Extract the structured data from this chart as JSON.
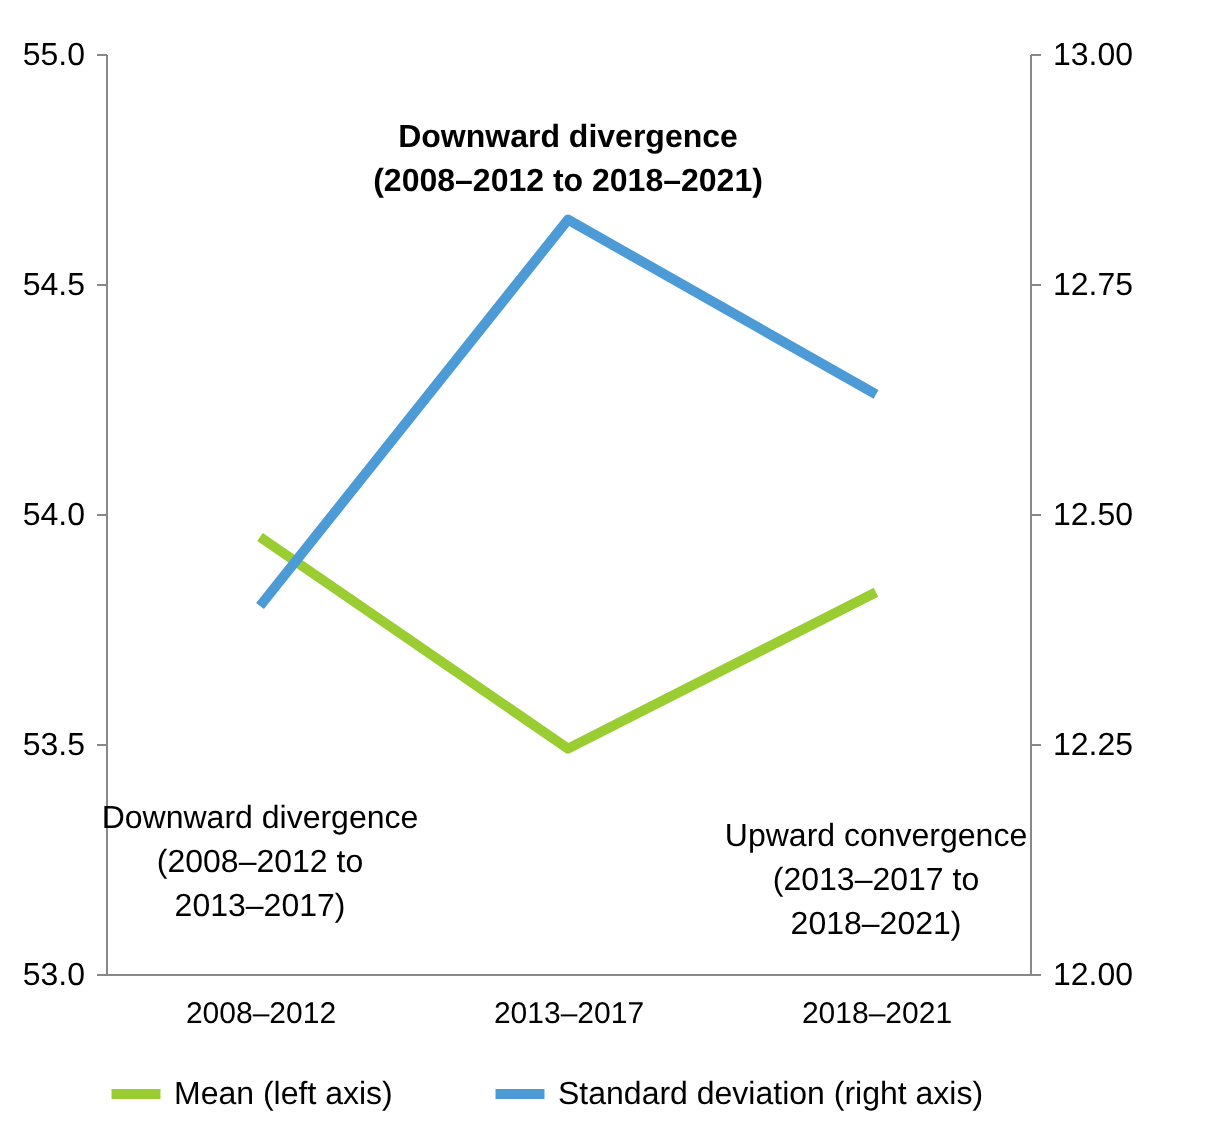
{
  "chart_data": {
    "type": "line",
    "categories": [
      "2008–2012",
      "2013–2017",
      "2018–2021"
    ],
    "series": [
      {
        "name": "Mean (left axis)",
        "color": "#9acd32",
        "values": [
          53.95,
          53.49,
          53.83
        ]
      },
      {
        "name": "Standard deviation (right axis)",
        "color": "#4c9ad6",
        "values": [
          12.4,
          12.82,
          12.63
        ],
        "axis": "y2"
      }
    ],
    "ylim": [
      53,
      55
    ],
    "yticks": [
      {
        "value": 53,
        "label": "53.0"
      },
      {
        "value": 53.5,
        "label": "53.5"
      },
      {
        "value": 54,
        "label": "54.0"
      },
      {
        "value": 54.5,
        "label": "54.5"
      },
      {
        "value": 55,
        "label": "55.0"
      }
    ],
    "y2lim": [
      12,
      13
    ],
    "y2ticks": [
      {
        "value": 12,
        "label": "12.00"
      },
      {
        "value": 12.25,
        "label": "12.25"
      },
      {
        "value": 12.5,
        "label": "12.50"
      },
      {
        "value": 12.75,
        "label": "12.75"
      },
      {
        "value": 13,
        "label": "13.00"
      }
    ],
    "annotations": [
      "Downward divergence\n(2008–2012 to 2018–2021)",
      "Downward divergence\n(2008–2012 to\n2013–2017)",
      "Upward convergence\n(2013–2017 to\n2018–2021)"
    ],
    "legend": "bottom",
    "grid": false,
    "marker": "none",
    "line_style": "solid"
  }
}
